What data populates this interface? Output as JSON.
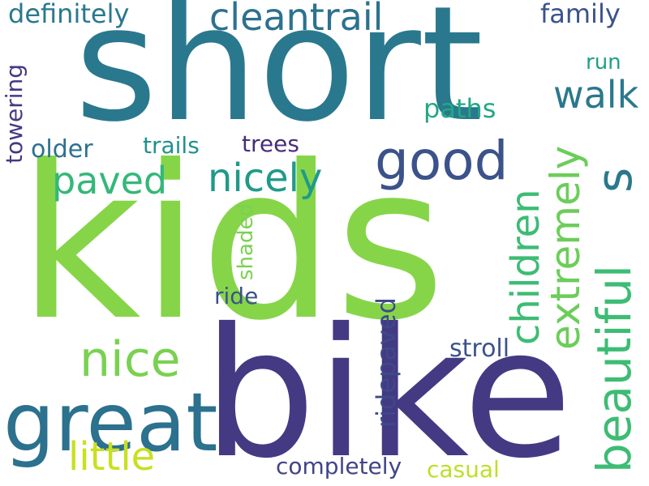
{
  "words": [
    {
      "text": "short",
      "color": "#2a788e"
    },
    {
      "text": "kids",
      "color": "#86d549"
    },
    {
      "text": "bike",
      "color": "#443a83"
    },
    {
      "text": "great",
      "color": "#2c718e"
    },
    {
      "text": "good",
      "color": "#3b528b"
    },
    {
      "text": "beautiful",
      "color": "#3dbc74"
    },
    {
      "text": "cleantrail",
      "color": "#2c728e"
    },
    {
      "text": "nicely",
      "color": "#1f9a8a"
    },
    {
      "text": "nice",
      "color": "#7ad151"
    },
    {
      "text": "paved",
      "color": "#35b779"
    },
    {
      "text": "children",
      "color": "#3dbc74"
    },
    {
      "text": "extremely",
      "color": "#6ccd5a"
    },
    {
      "text": "s",
      "color": "#2a788e"
    },
    {
      "text": "walk",
      "color": "#2a788e"
    },
    {
      "text": "little",
      "color": "#c8e020"
    },
    {
      "text": "definitely",
      "color": "#2a788e"
    },
    {
      "text": "family",
      "color": "#3b528b"
    },
    {
      "text": "run",
      "color": "#1fa187"
    },
    {
      "text": "paths",
      "color": "#22a884"
    },
    {
      "text": "towering",
      "color": "#443983"
    },
    {
      "text": "older",
      "color": "#2c718e"
    },
    {
      "text": "trails",
      "color": "#21918c"
    },
    {
      "text": "trees",
      "color": "#472d7b"
    },
    {
      "text": "shaded",
      "color": "#7ad151"
    },
    {
      "text": "ride",
      "color": "#3b528b"
    },
    {
      "text": "ridepaved",
      "color": "#3e4989"
    },
    {
      "text": "stroll",
      "color": "#3b528b"
    },
    {
      "text": "completely",
      "color": "#414487"
    },
    {
      "text": "casual",
      "color": "#bddf26"
    }
  ]
}
